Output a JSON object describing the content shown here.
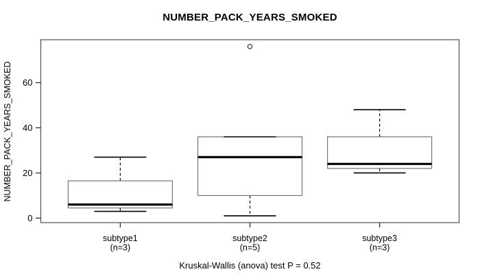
{
  "page": {
    "background": "#ffffff"
  },
  "chart_data": {
    "type": "boxplot",
    "title": "NUMBER_PACK_YEARS_SMOKED",
    "ylabel": "NUMBER_PACK_YEARS_SMOKED",
    "footnote": "Kruskal-Wallis (anova) test P = 0.52",
    "ylim": [
      -2,
      79
    ],
    "yticks": [
      0,
      20,
      40,
      60
    ],
    "grid": false,
    "legend": "none",
    "groups": [
      {
        "label": "subtype1",
        "count_label": "(n=3)",
        "n": 3,
        "whisker_low": 3,
        "q1": 4.5,
        "median": 6,
        "q3": 16.5,
        "whisker_high": 27,
        "outliers": []
      },
      {
        "label": "subtype2",
        "count_label": "(n=5)",
        "n": 5,
        "whisker_low": 1,
        "q1": 10,
        "median": 27,
        "q3": 36,
        "whisker_high": 36,
        "outliers": [
          76
        ]
      },
      {
        "label": "subtype3",
        "count_label": "(n=3)",
        "n": 3,
        "whisker_low": 20,
        "q1": 22,
        "median": 24,
        "q3": 36,
        "whisker_high": 48,
        "outliers": []
      }
    ],
    "colors": {
      "frame": "#4f4f4f",
      "tick": "#2b2b2b",
      "box_border": "#757575",
      "box_fill": "#ffffff",
      "median": "#000000",
      "whisker": "#000000",
      "outlier_stroke": "#333333",
      "text": "#000000"
    }
  }
}
